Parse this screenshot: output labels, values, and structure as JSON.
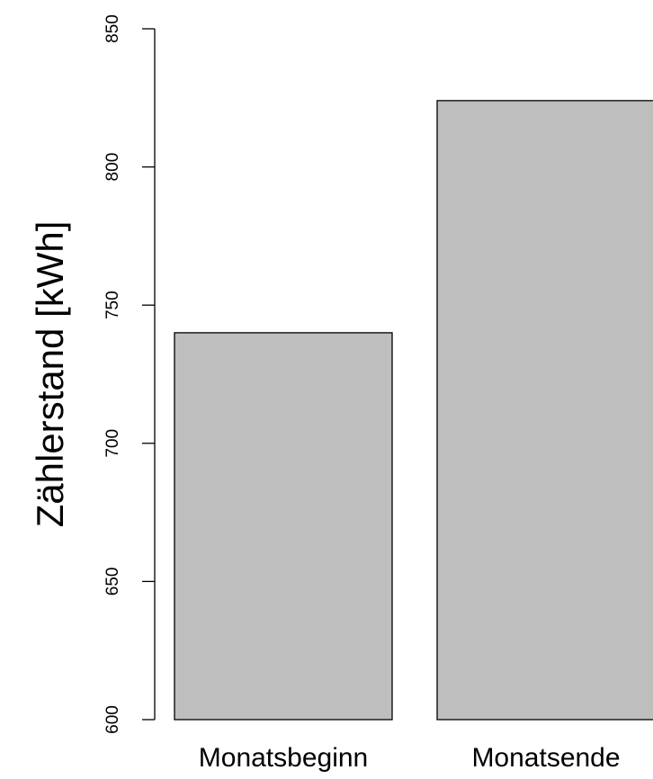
{
  "chart_data": {
    "type": "bar",
    "categories": [
      "Monatsbeginn",
      "Monatsende"
    ],
    "values": [
      740,
      824
    ],
    "ylabel": "Zählerstand [kWh]",
    "xlabel": "",
    "ylim": [
      600,
      850
    ],
    "yticks": [
      600,
      650,
      700,
      750,
      800,
      850
    ],
    "bar_color": "#bebebe",
    "grid": false,
    "legend": "none"
  }
}
